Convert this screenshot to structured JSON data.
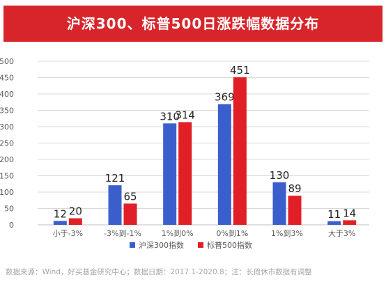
{
  "title": "沪深300、标普500日涨跌幅数据分布",
  "footnote": "数据来源：Wind，好买基金研究中心；数据日期：2017.1-2020.8；注：长假休市数据有调整",
  "colors": {
    "title_bg": "#d8252b",
    "hs300": "#3a5fcd",
    "sp500": "#e02026",
    "grid": "#d9d9d9",
    "axis_text": "#595959"
  },
  "chart_data": {
    "type": "bar",
    "title": "沪深300、标普500日涨跌幅数据分布",
    "categories": [
      "小于-3%",
      "-3%到-1%",
      "1%到0%",
      "0%到1%",
      "1%到3%",
      "大于3%"
    ],
    "series": [
      {
        "name": "沪深300指数",
        "values": [
          12,
          121,
          310,
          369,
          130,
          11
        ]
      },
      {
        "name": "标普500指数",
        "values": [
          20,
          65,
          314,
          451,
          89,
          14
        ]
      }
    ],
    "ylim": [
      0,
      500
    ],
    "yticks": [
      "0",
      "50",
      "100",
      "150",
      "200",
      "250",
      "300",
      "350",
      "400",
      "450",
      "500"
    ],
    "grid": true,
    "legend": "bottom"
  }
}
